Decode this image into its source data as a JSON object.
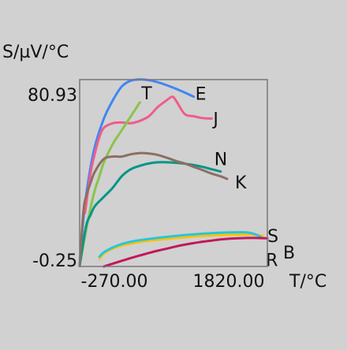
{
  "chart_data": {
    "type": "line",
    "ylabel": "S/µV/°C",
    "xlabel": "T/°C",
    "xlim": [
      -270,
      1820
    ],
    "ylim": [
      -0.25,
      80.93
    ],
    "x_ticks": [
      "-270.00",
      "1820.00"
    ],
    "y_ticks": [
      "80.93",
      "-0.25"
    ],
    "grid": false,
    "legend": "labels beside curve ends",
    "series": [
      {
        "name": "E",
        "color": "#4285f4",
        "x": [
          -270,
          -230,
          -170,
          -100,
          0,
          100,
          200,
          300,
          400,
          500,
          600,
          700,
          800,
          900,
          1000
        ],
        "y": [
          0,
          20,
          38,
          52,
          64,
          72,
          78,
          80.5,
          81,
          80.7,
          79.8,
          78.5,
          77.0,
          75.3,
          73.5
        ]
      },
      {
        "name": "J",
        "color": "#ef5d8c",
        "x": [
          -210,
          -150,
          -100,
          -50,
          0,
          100,
          200,
          300,
          400,
          500,
          600,
          700,
          760,
          800,
          900,
          1000,
          1100,
          1200
        ],
        "y": [
          23,
          40,
          49,
          56,
          60,
          62,
          62.3,
          62,
          63,
          65,
          69,
          72,
          73.5,
          72,
          66,
          65,
          64.2,
          64
        ]
      },
      {
        "name": "T",
        "color": "#8bc34a",
        "x": [
          -270,
          -200,
          -150,
          -100,
          -50,
          0,
          100,
          200,
          300,
          400
        ],
        "y": [
          0,
          15,
          25,
          33,
          39,
          45,
          53,
          59,
          65,
          71
        ]
      },
      {
        "name": "N",
        "color": "#009688",
        "x": [
          -270,
          -200,
          -150,
          -100,
          0,
          100,
          200,
          300,
          400,
          500,
          600,
          700,
          800,
          900,
          1000,
          1100,
          1200,
          1300
        ],
        "y": [
          0,
          17,
          22,
          26,
          30,
          34,
          39,
          42,
          43.5,
          44.5,
          45,
          45,
          44.8,
          44.4,
          43.8,
          43,
          42,
          41
        ]
      },
      {
        "name": "K",
        "color": "#8d6e63",
        "x": [
          -270,
          -230,
          -200,
          -150,
          -100,
          0,
          100,
          200,
          300,
          400,
          500,
          600,
          700,
          800,
          900,
          1000,
          1100,
          1200,
          1300,
          1372
        ],
        "y": [
          0,
          23,
          30,
          36,
          41,
          46.5,
          47.5,
          47.5,
          48.5,
          49,
          48.8,
          48.2,
          47,
          45.6,
          44.5,
          43.0,
          41.6,
          40.1,
          38.9,
          37.8
        ]
      },
      {
        "name": "R",
        "color": "#ffc107",
        "x": [
          -50,
          0,
          100,
          200,
          300,
          400,
          500,
          600,
          700,
          800,
          900,
          1000,
          1100,
          1200,
          1300,
          1400,
          1500,
          1600,
          1700,
          1768
        ],
        "y": [
          3.0,
          5.3,
          7.5,
          8.8,
          9.7,
          10.4,
          10.9,
          11.3,
          11.7,
          12.1,
          12.4,
          12.8,
          13.0,
          13.2,
          13.4,
          13.5,
          13.6,
          13.6,
          13.4,
          13.0
        ]
      },
      {
        "name": "S",
        "color": "#26c6da",
        "x": [
          -50,
          0,
          100,
          200,
          300,
          400,
          500,
          600,
          700,
          800,
          900,
          1000,
          1100,
          1200,
          1300,
          1400,
          1500,
          1600,
          1700,
          1768
        ],
        "y": [
          4.0,
          5.9,
          8.0,
          9.5,
          10.5,
          11.2,
          11.7,
          12.2,
          12.6,
          13.0,
          13.4,
          13.7,
          14.0,
          14.2,
          14.4,
          14.5,
          14.6,
          14.5,
          13.5,
          12.0
        ]
      },
      {
        "name": "B",
        "color": "#c2185b",
        "x": [
          0,
          100,
          200,
          300,
          400,
          500,
          600,
          700,
          800,
          900,
          1000,
          1100,
          1200,
          1300,
          1400,
          1500,
          1600,
          1700,
          1820
        ],
        "y": [
          -0.25,
          1.0,
          2.2,
          3.4,
          4.5,
          5.6,
          6.6,
          7.5,
          8.4,
          9.2,
          9.9,
          10.5,
          11.0,
          11.5,
          11.8,
          12.0,
          12.1,
          12.1,
          12.0
        ]
      }
    ]
  }
}
